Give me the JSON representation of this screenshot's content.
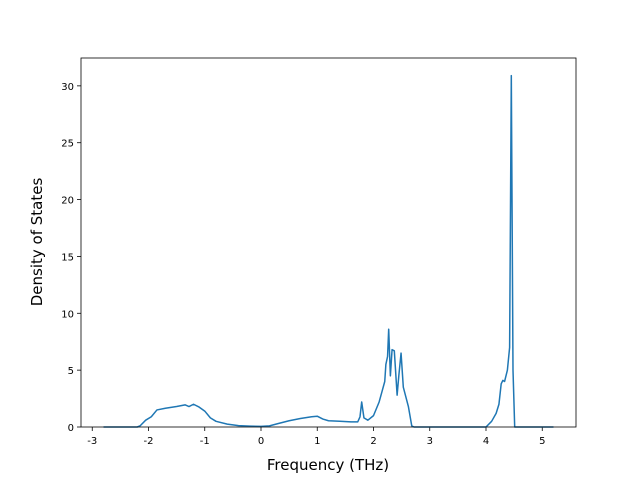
{
  "chart_data": {
    "type": "line",
    "x_label": "Frequency (THz)",
    "y_label": "Density of States",
    "xlim": [
      -3.2,
      5.6
    ],
    "ylim": [
      0,
      32.45
    ],
    "xticks": [
      -3,
      -2,
      -1,
      0,
      1,
      2,
      3,
      4,
      5
    ],
    "yticks": [
      0,
      5,
      10,
      15,
      20,
      25,
      30
    ],
    "grid": false,
    "series": [
      {
        "color": "#1f77b4",
        "x": [
          -2.8,
          -2.2,
          -2.15,
          -2.05,
          -1.95,
          -1.85,
          -1.7,
          -1.5,
          -1.35,
          -1.28,
          -1.2,
          -1.1,
          -1.0,
          -0.9,
          -0.8,
          -0.6,
          -0.4,
          -0.2,
          0,
          0.15,
          0.3,
          0.5,
          0.7,
          0.9,
          1.0,
          1.1,
          1.2,
          1.4,
          1.6,
          1.72,
          1.76,
          1.79,
          1.83,
          1.9,
          2.0,
          2.1,
          2.2,
          2.22,
          2.25,
          2.27,
          2.3,
          2.33,
          2.37,
          2.42,
          2.45,
          2.49,
          2.53,
          2.62,
          2.68,
          2.72,
          3.0,
          3.5,
          4.0,
          4.1,
          4.18,
          4.23,
          4.27,
          4.3,
          4.33,
          4.38,
          4.42,
          4.45,
          4.48,
          4.51,
          4.7,
          5.2
        ],
        "values": [
          0,
          0,
          0.1,
          0.6,
          0.9,
          1.5,
          1.65,
          1.8,
          1.95,
          1.8,
          2.0,
          1.75,
          1.4,
          0.8,
          0.5,
          0.25,
          0.12,
          0.08,
          0.05,
          0.1,
          0.3,
          0.55,
          0.75,
          0.9,
          0.95,
          0.7,
          0.55,
          0.5,
          0.45,
          0.45,
          0.9,
          2.2,
          0.8,
          0.6,
          1.0,
          2.2,
          4.0,
          5.5,
          6.2,
          8.6,
          4.5,
          6.8,
          6.7,
          2.8,
          4.5,
          6.5,
          3.5,
          1.8,
          0.1,
          0,
          0,
          0,
          0,
          0.5,
          1.2,
          2.0,
          3.8,
          4.1,
          4.0,
          5.0,
          7.0,
          30.9,
          5.0,
          0,
          0,
          0
        ]
      }
    ]
  }
}
